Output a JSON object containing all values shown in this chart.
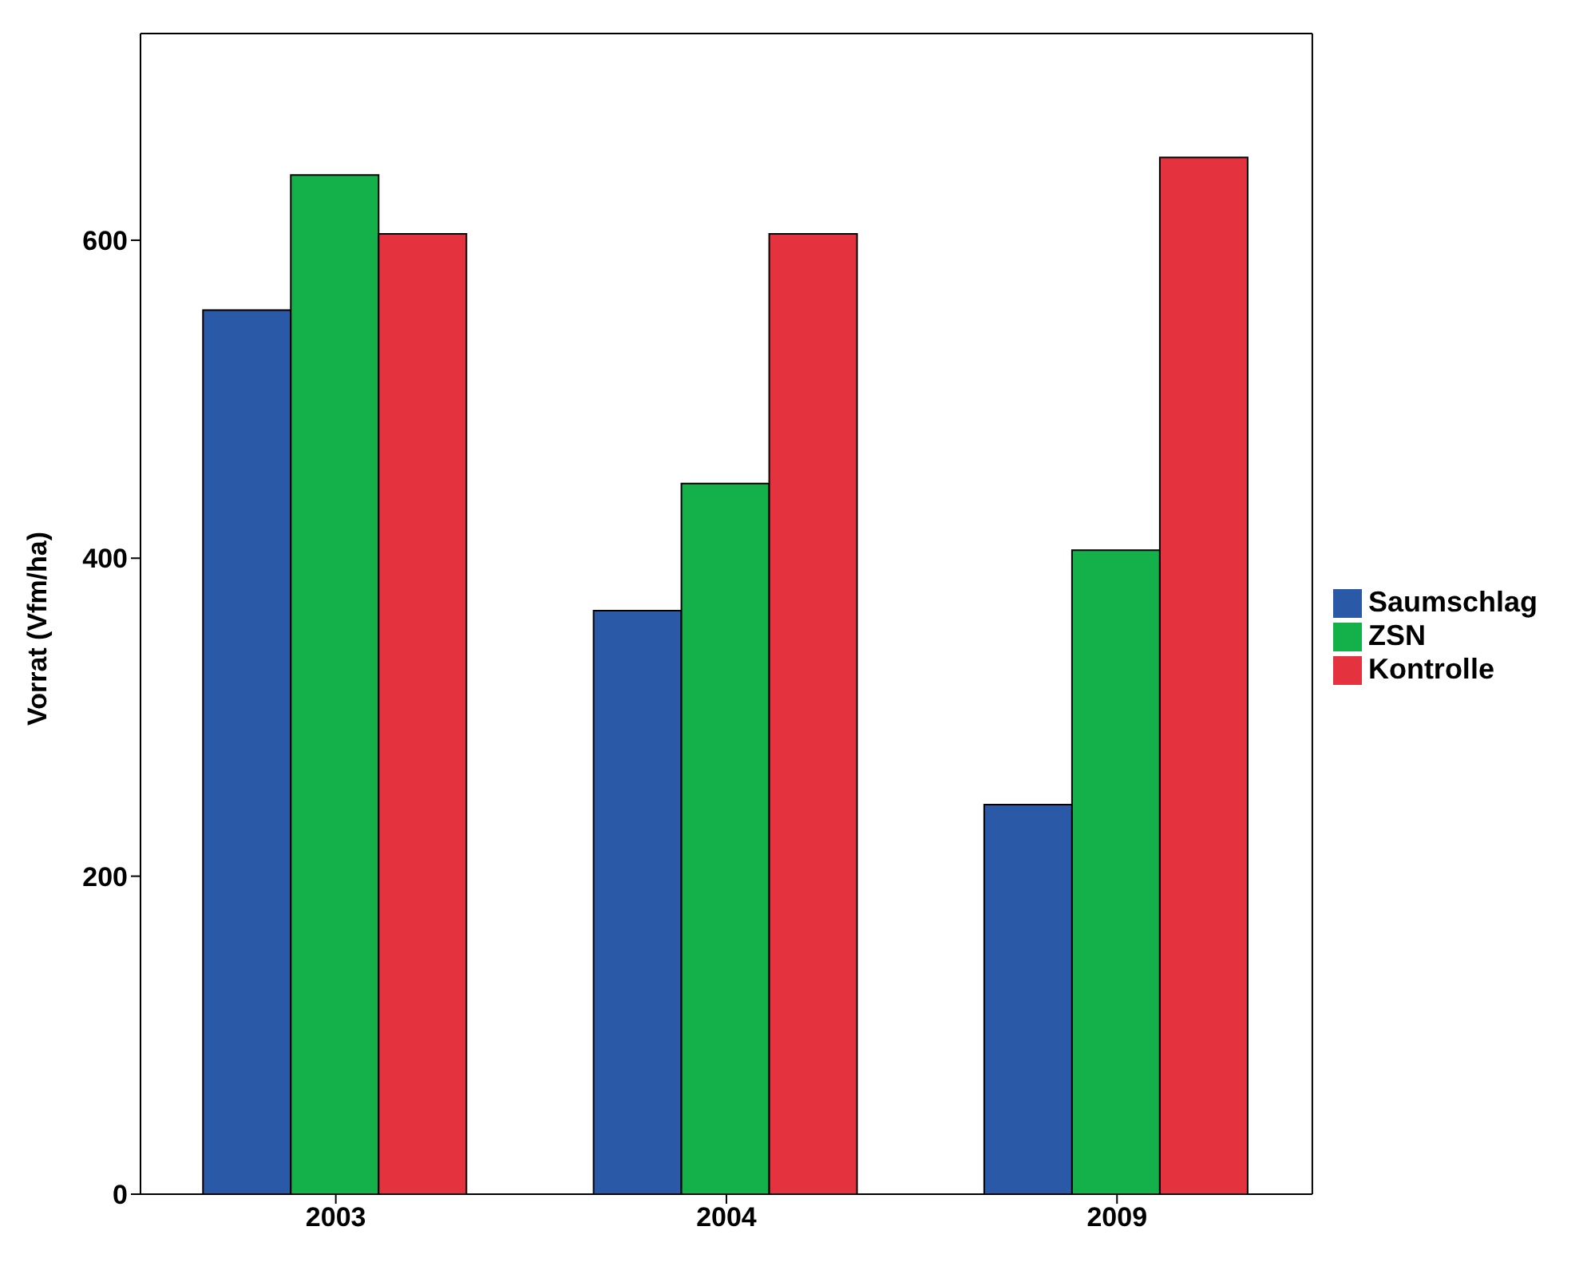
{
  "chart_data": {
    "type": "bar",
    "ylabel": "Vorrat (Vfm/ha)",
    "categories": [
      "2003",
      "2004",
      "2009"
    ],
    "series": [
      {
        "name": "Saumschlag",
        "color": "#2a59a8",
        "values": [
          556,
          367,
          245
        ]
      },
      {
        "name": "ZSN",
        "color": "#14b14b",
        "values": [
          641,
          447,
          405
        ]
      },
      {
        "name": "Kontrolle",
        "color": "#e5323f",
        "values": [
          604,
          604,
          652
        ]
      }
    ],
    "ylim": [
      0,
      730
    ],
    "yticks": [
      0,
      200,
      400,
      600
    ],
    "legend": "right"
  }
}
